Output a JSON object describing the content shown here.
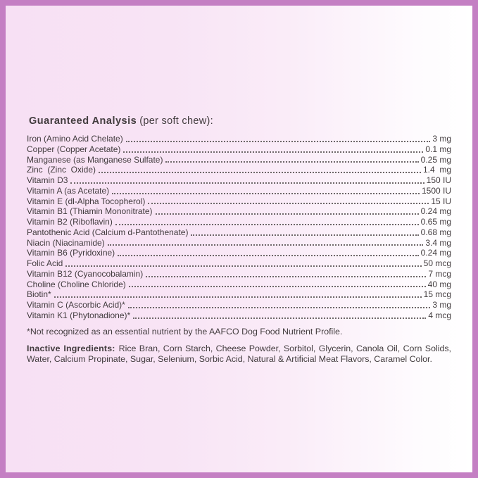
{
  "label": {
    "title": "Guaranteed Analysis",
    "title_suffix": "(per soft chew):",
    "rows": [
      {
        "name": "Iron (Amino Acid Chelate)",
        "value": "3 mg"
      },
      {
        "name": "Copper (Copper Acetate)",
        "value": "0.1 mg"
      },
      {
        "name": "Manganese (as Manganese Sulfate)",
        "value": "0.25 mg"
      },
      {
        "name": "Zinc  (Zinc  Oxide)",
        "value": "1.4  mg"
      },
      {
        "name": "Vitamin D3",
        "value": "150 IU"
      },
      {
        "name": "Vitamin A (as Acetate)",
        "value": "1500 IU"
      },
      {
        "name": "Vitamin E (dl-Alpha Tocopherol)",
        "value": "15 IU"
      },
      {
        "name": "Vitamin B1 (Thiamin Mononitrate)",
        "value": "0.24 mg"
      },
      {
        "name": "Vitamin B2 (Riboflavin)",
        "value": "0.65 mg"
      },
      {
        "name": "Pantothenic Acid (Calcium d-Pantothenate)",
        "value": "0.68 mg"
      },
      {
        "name": "Niacin (Niacinamide)",
        "value": "3.4 mg"
      },
      {
        "name": "Vitamin B6 (Pyridoxine)",
        "value": "0.24 mg"
      },
      {
        "name": "Folic Acid",
        "value": "50 mcg"
      },
      {
        "name": "Vitamin B12 (Cyanocobalamin)",
        "value": "7 mcg"
      },
      {
        "name": "Choline (Choline Chloride)",
        "value": "40 mg"
      },
      {
        "name": "Biotin*",
        "value": "15 mcg"
      },
      {
        "name": "Vitamin C (Ascorbic Acid)*",
        "value": "3 mg"
      },
      {
        "name": "Vitamin K1 (Phytonadione)*",
        "value": "4 mcg"
      }
    ],
    "footnote": "*Not recognized as an essential nutrient by the AAFCO Dog Food Nutrient Profile.",
    "inactive_heading": "Inactive Ingredients:",
    "inactive_body": "Rice Bran, Corn Starch, Cheese Powder, Sorbitol, Glycerin, Canola Oil, Corn Solids, Water, Calcium Propinate, Sugar, Selenium, Sorbic Acid, Natural & Artificial Meat Flavors, Caramel Color."
  },
  "colors": {
    "border": "#c47fc3",
    "background_left": "#f7e0f4",
    "background_right": "#ffffff",
    "text": "#423c3e"
  }
}
